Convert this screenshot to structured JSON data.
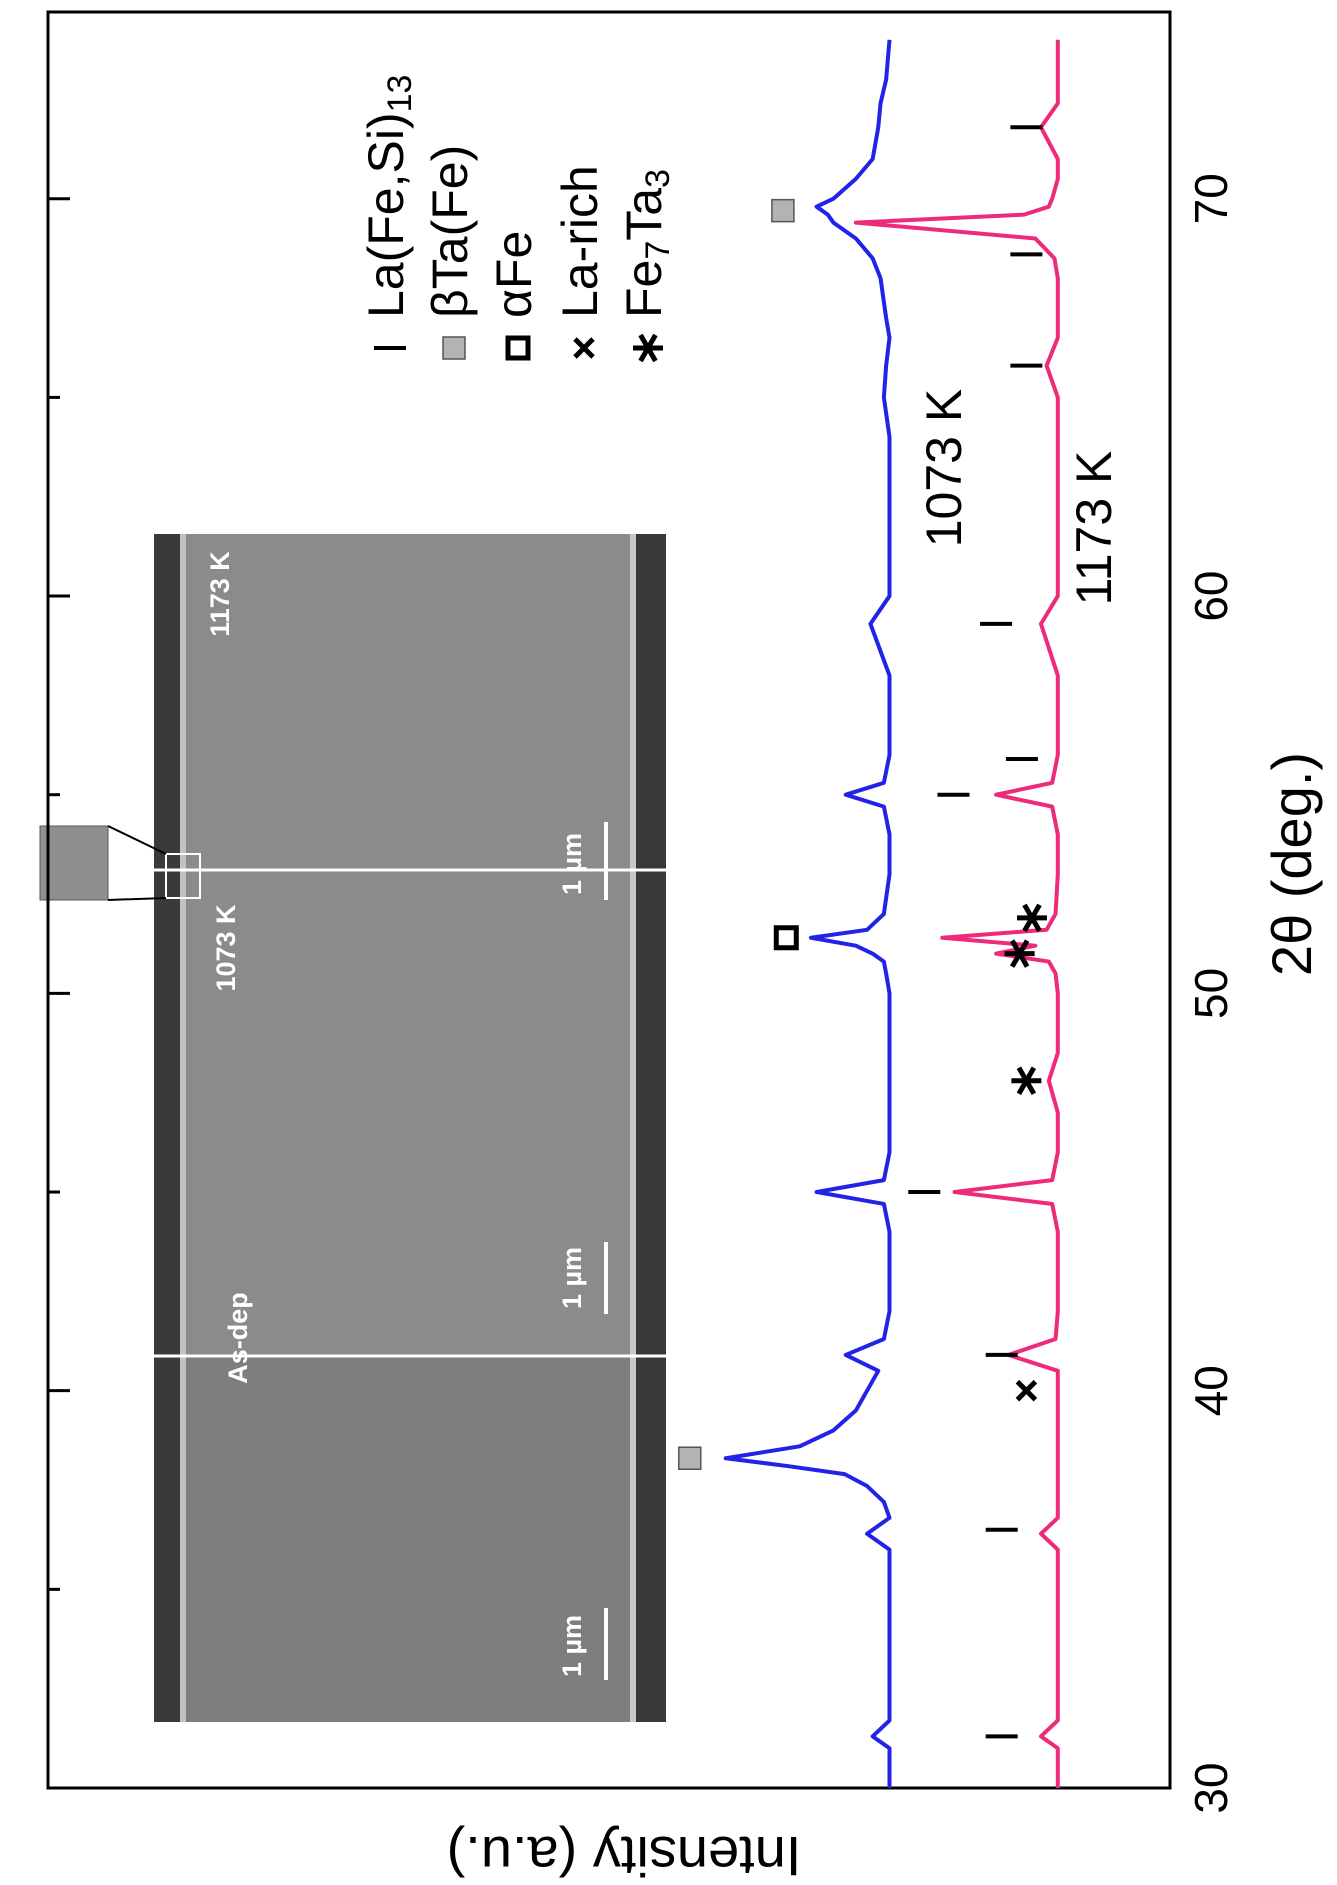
{
  "chart_data": {
    "type": "line",
    "xlabel": "2θ (deg.)",
    "ylabel": "Intensity (a.u.)",
    "xlim": [
      30,
      74.7
    ],
    "ylim": [
      0,
      100
    ],
    "xticks": [
      30,
      40,
      50,
      60,
      70
    ],
    "minor_xticks": [
      35,
      45,
      55,
      65
    ],
    "x": [
      30,
      31,
      31.3,
      31.7,
      33,
      34,
      35,
      36,
      36.4,
      36.8,
      37.2,
      37.6,
      37.9,
      38.1,
      38.3,
      38.6,
      39,
      39.5,
      40,
      40.5,
      40.9,
      41.3,
      42,
      43,
      44,
      44.7,
      45.0,
      45.3,
      46,
      47,
      47.8,
      48.5,
      49,
      50,
      50.5,
      50.8,
      51.0,
      51.2,
      51.4,
      51.6,
      52,
      53,
      54,
      54.7,
      55.0,
      55.3,
      56,
      57,
      58,
      59.3,
      60,
      61,
      62,
      63,
      64,
      65,
      65.8,
      66.5,
      67,
      68,
      68.5,
      69,
      69.4,
      69.6,
      69.8,
      70,
      70.5,
      71,
      71.8,
      72.4,
      73,
      74
    ],
    "series": [
      {
        "name": "1073 K",
        "color": "#2222e8",
        "values": [
          25,
          25,
          26.5,
          25,
          25,
          25,
          25,
          25,
          27,
          25,
          25.5,
          27,
          29,
          34,
          39.6,
          33,
          30,
          28,
          27,
          26,
          28.9,
          25.5,
          25,
          25,
          25,
          25.5,
          31.5,
          25.5,
          25,
          25,
          25,
          25,
          25,
          25,
          25.3,
          25.5,
          26.5,
          28,
          32,
          27,
          25.5,
          25,
          25,
          25.5,
          28.9,
          25.5,
          25,
          25,
          25,
          26.7,
          25,
          25,
          25,
          25,
          25,
          25.5,
          25.3,
          25,
          25.3,
          25.8,
          26.5,
          28,
          30,
          30.5,
          31.5,
          30,
          28,
          26.5,
          26,
          25.8,
          25.3,
          25
        ]
      },
      {
        "name": "1173 K",
        "color": "#ee2a7b",
        "values": [
          10,
          10,
          11.5,
          10,
          10,
          10,
          10,
          10,
          11.5,
          10,
          10,
          10,
          10,
          10,
          10,
          10,
          10,
          10,
          10,
          10,
          14.4,
          10.2,
          10,
          10,
          10,
          10.5,
          19.2,
          10.5,
          10,
          10,
          10.8,
          10,
          10,
          10,
          10.2,
          10.8,
          15.5,
          12,
          20.3,
          11,
          10.2,
          10,
          10,
          10.5,
          15.5,
          10.5,
          10,
          10,
          10,
          11.5,
          10,
          10,
          10,
          10,
          10,
          10,
          11,
          10,
          10,
          10,
          10.3,
          12,
          28,
          13,
          10.8,
          10.5,
          10,
          10,
          11.5,
          10,
          10,
          10
        ]
      }
    ],
    "markers": [
      {
        "symbol": "bar",
        "x": 31.3,
        "y": 15
      },
      {
        "symbol": "bar",
        "x": 36.5,
        "y": 15
      },
      {
        "symbol": "bar",
        "x": 40.9,
        "y": 15
      },
      {
        "symbol": "bar",
        "x": 45.0,
        "y": 21.9
      },
      {
        "symbol": "bar",
        "x": 55.0,
        "y": 19.3
      },
      {
        "symbol": "bar",
        "x": 55.9,
        "y": 13.2
      },
      {
        "symbol": "bar",
        "x": 59.3,
        "y": 15.5
      },
      {
        "symbol": "bar",
        "x": 65.8,
        "y": 12.8
      },
      {
        "symbol": "bar",
        "x": 68.6,
        "y": 12.8
      },
      {
        "symbol": "bar",
        "x": 71.8,
        "y": 12.8
      },
      {
        "symbol": "gray_square",
        "x": 38.3,
        "y": 42.8
      },
      {
        "symbol": "gray_square",
        "x": 69.7,
        "y": 34.5
      },
      {
        "symbol": "open_square",
        "x": 51.4,
        "y": 34.2
      },
      {
        "symbol": "cross",
        "x": 40.0,
        "y": 12.8
      },
      {
        "symbol": "asterisk",
        "x": 47.8,
        "y": 12.8
      },
      {
        "symbol": "asterisk",
        "x": 51.0,
        "y": 13.4
      },
      {
        "symbol": "asterisk",
        "x": 51.9,
        "y": 12.3
      }
    ],
    "legend": [
      {
        "symbol": "bar",
        "text": "La(Fe,Si)",
        "sub": "13"
      },
      {
        "symbol": "gray_square",
        "text": "βTa(Fe)"
      },
      {
        "symbol": "open_square",
        "text": "αFe"
      },
      {
        "symbol": "cross",
        "text": "La-rich"
      },
      {
        "symbol": "asterisk",
        "text": "Fe",
        "sub": "7",
        "text2": "Ta",
        "sub2": "3"
      }
    ],
    "inset": {
      "panels": [
        "As-dep",
        "1073 K",
        "1173 K"
      ],
      "scale_bar": "1 µm"
    }
  }
}
